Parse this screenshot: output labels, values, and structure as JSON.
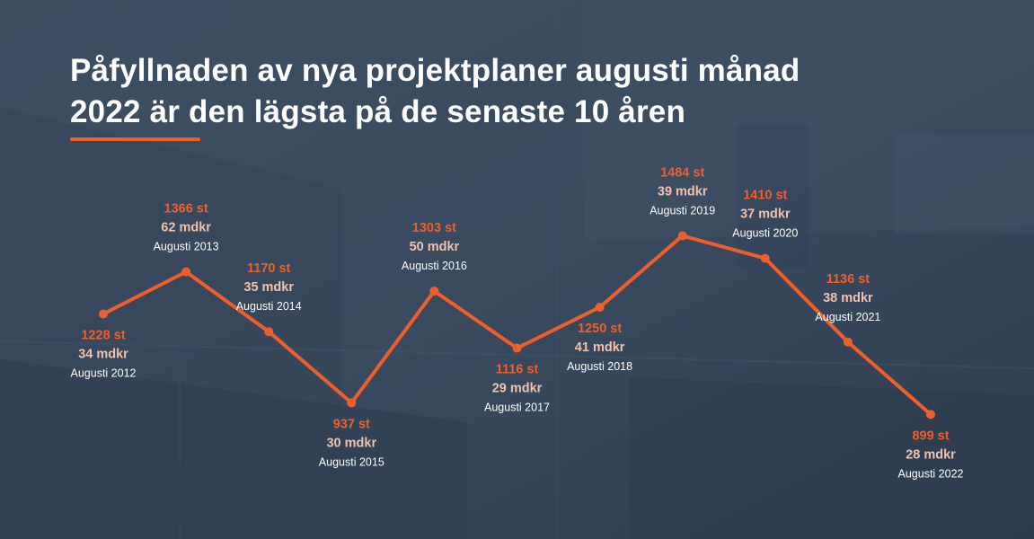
{
  "title": {
    "line1": "Påfyllnaden av nya projektplaner augusti månad",
    "line2": "2022 är den lägsta på de senaste 10 åren"
  },
  "colors": {
    "accent": "#ef5f2c",
    "text": "#ffffff",
    "background": "#3a4a5f"
  },
  "chart_data": {
    "type": "line",
    "x": [
      "Augusti 2012",
      "Augusti 2013",
      "Augusti 2014",
      "Augusti 2015",
      "Augusti 2016",
      "Augusti 2017",
      "Augusti 2018",
      "Augusti 2019",
      "Augusti 2020",
      "Augusti 2021",
      "Augusti 2022"
    ],
    "series": [
      {
        "values": [
          1228,
          1366,
          1170,
          937,
          1303,
          1116,
          1250,
          1484,
          1410,
          1136,
          899
        ]
      }
    ],
    "count_labels": [
      "1228 st",
      "1366 st",
      "1170 st",
      "937 st",
      "1303 st",
      "1116 st",
      "1250 st",
      "1484 st",
      "1410 st",
      "1136 st",
      "899 st"
    ],
    "value_labels": [
      "34 mdkr",
      "62 mdkr",
      "35 mdkr",
      "30 mdkr",
      "50 mdkr",
      "29 mdkr",
      "41 mdkr",
      "39 mdkr",
      "37 mdkr",
      "38 mdkr",
      "28 mdkr"
    ],
    "label_side": [
      "below",
      "above",
      "above",
      "below",
      "above",
      "below",
      "below",
      "above",
      "above",
      "above",
      "below"
    ],
    "ylim": [
      800,
      1550
    ],
    "grid": false,
    "legend": "none",
    "xlabel": "",
    "ylabel": ""
  }
}
